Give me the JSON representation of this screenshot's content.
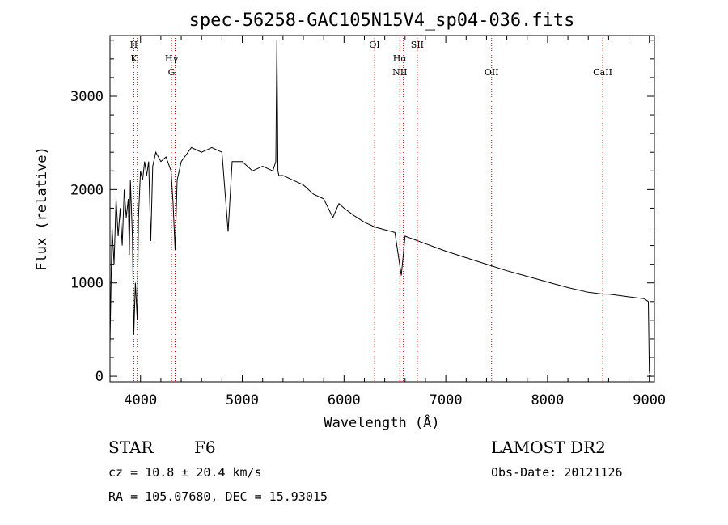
{
  "chart_data": {
    "type": "line",
    "title": "spec-56258-GAC105N15V4_sp04-036.fits",
    "xlabel": "Wavelength (Å)",
    "ylabel": "Flux (relative)",
    "xlim": [
      3700,
      9050
    ],
    "ylim": [
      -60,
      3650
    ],
    "x_ticks": [
      4000,
      5000,
      6000,
      7000,
      8000,
      9000
    ],
    "y_ticks": [
      0,
      1000,
      2000,
      3000
    ],
    "grid": false,
    "series": [
      {
        "x": [
          3700,
          3720,
          3740,
          3760,
          3780,
          3800,
          3820,
          3840,
          3860,
          3880,
          3890,
          3900,
          3920,
          3934,
          3950,
          3968,
          3980,
          4000,
          4020,
          4040,
          4060,
          4080,
          4101,
          4120,
          4150,
          4200,
          4250,
          4300,
          4320,
          4340,
          4360,
          4400,
          4500,
          4600,
          4700,
          4800,
          4861,
          4900,
          5000,
          5100,
          5200,
          5300,
          5330,
          5340,
          5345,
          5350,
          5360,
          5400,
          5500,
          5600,
          5700,
          5800,
          5890,
          5950,
          6000,
          6100,
          6200,
          6300,
          6400,
          6500,
          6563,
          6600,
          6700,
          6800,
          6900,
          7000,
          7200,
          7400,
          7600,
          7800,
          8000,
          8200,
          8400,
          8542,
          8600,
          8800,
          8950,
          8990,
          9000,
          9010
        ],
        "y": [
          350,
          1600,
          1200,
          1900,
          1500,
          1800,
          1400,
          2000,
          1700,
          1900,
          1300,
          2100,
          1500,
          450,
          1000,
          600,
          1700,
          2200,
          2100,
          2300,
          2150,
          2300,
          1450,
          2250,
          2400,
          2300,
          2350,
          2200,
          1850,
          1350,
          2100,
          2300,
          2450,
          2400,
          2450,
          2400,
          1550,
          2300,
          2300,
          2200,
          2250,
          2200,
          2300,
          3600,
          3000,
          2200,
          2150,
          2150,
          2100,
          2050,
          1950,
          1900,
          1700,
          1850,
          1800,
          1720,
          1650,
          1600,
          1570,
          1540,
          1080,
          1500,
          1460,
          1420,
          1380,
          1340,
          1270,
          1200,
          1130,
          1070,
          1010,
          950,
          900,
          880,
          880,
          850,
          830,
          800,
          50,
          0
        ]
      }
    ],
    "lines": [
      {
        "wavelength": 3934,
        "labels": [
          "H",
          "K"
        ]
      },
      {
        "wavelength": 3968,
        "labels": []
      },
      {
        "wavelength": 4304,
        "labels": [
          "Hγ",
          "G"
        ]
      },
      {
        "wavelength": 4340,
        "labels": []
      },
      {
        "wavelength": 6300,
        "labels": [
          "OI"
        ]
      },
      {
        "wavelength": 6548,
        "labels": [
          "Hα",
          "NII"
        ]
      },
      {
        "wavelength": 6583,
        "labels": []
      },
      {
        "wavelength": 6720,
        "labels": [
          "SII"
        ]
      },
      {
        "wavelength": 7450,
        "labels": [
          "OII"
        ]
      },
      {
        "wavelength": 8542,
        "labels": [
          "CaII"
        ]
      }
    ],
    "line_color": "#cc0000",
    "curve_color": "#000000"
  },
  "info": {
    "object_class": "STAR",
    "subclass": "F6",
    "survey": "LAMOST DR2",
    "cz": "cz = 10.8 ± 20.4 km/s",
    "obs_date": "Obs-Date: 20121126",
    "coords": "RA = 105.07680, DEC =  15.93015"
  }
}
